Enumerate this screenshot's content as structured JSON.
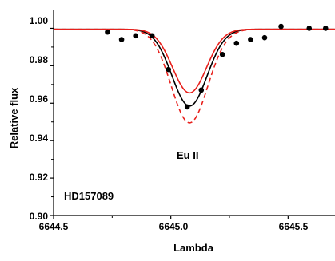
{
  "chart_data": {
    "type": "line",
    "title": "",
    "xlabel": "Lambda",
    "ylabel": "Relative flux",
    "xlim": [
      6644.5,
      6645.7
    ],
    "ylim": [
      0.9,
      1.01
    ],
    "x_ticks": [
      6644.5,
      6645.0,
      6645.5
    ],
    "x_tick_labels": [
      "6644.5",
      "6645.0",
      "6645.5"
    ],
    "y_ticks": [
      0.9,
      0.92,
      0.94,
      0.96,
      0.98,
      1.0
    ],
    "y_tick_labels": [
      "0.90",
      "0.92",
      "0.94",
      "0.96",
      "0.98",
      "1.00"
    ],
    "grid": false,
    "annotations": [
      "Eu II",
      "HD157089"
    ],
    "colors": {
      "model": "#000000",
      "bounds": "#e8201c",
      "points": "#000000"
    },
    "observed_points": {
      "x": [
        6644.73,
        6644.79,
        6644.85,
        6644.92,
        6644.99,
        6645.07,
        6645.13,
        6645.22,
        6645.28,
        6645.34,
        6645.4,
        6645.47,
        6645.59,
        6645.66
      ],
      "y": [
        0.998,
        0.994,
        0.996,
        0.996,
        0.978,
        0.958,
        0.967,
        0.986,
        0.992,
        0.994,
        0.995,
        1.001,
        1.0,
        1.0
      ]
    },
    "series": [
      {
        "style": "solid",
        "color": "#000000",
        "continuum": 0.9995,
        "center": 6645.08,
        "depth": 0.041,
        "width": 0.075
      },
      {
        "style": "solid",
        "color": "#e8201c",
        "continuum": 0.9995,
        "center": 6645.08,
        "depth": 0.034,
        "width": 0.072
      },
      {
        "style": "dashed",
        "color": "#e8201c",
        "continuum": 0.9995,
        "center": 6645.08,
        "depth": 0.05,
        "width": 0.078
      }
    ]
  }
}
